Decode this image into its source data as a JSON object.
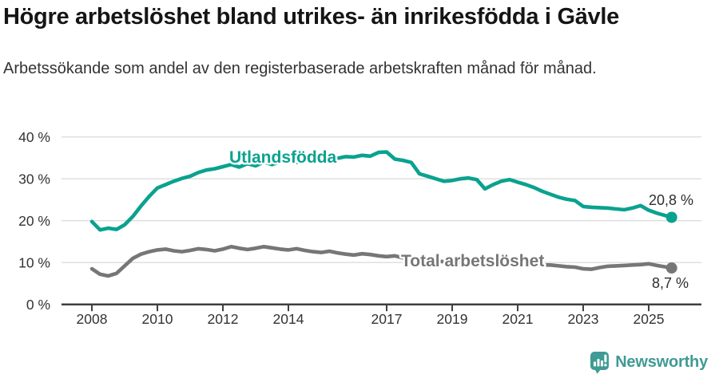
{
  "header": {
    "title": "Högre arbetslöshet bland utrikes- än inrikesfödda i Gävle",
    "subtitle": "Arbetssökande som andel av den registerbaserade arbetskraften månad för månad."
  },
  "colors": {
    "foreign_born_line": "#0aa28f",
    "total_line": "#767676",
    "grid": "#dcdcdc",
    "axis": "#3f3f3f",
    "tick_text": "#333333",
    "value_label_text": "#2e2e2e",
    "brand_teal": "#3f9b94",
    "title_text": "#151515"
  },
  "chart_data": {
    "type": "line",
    "title": "Högre arbetslöshet bland utrikes- än inrikesfödda i Gävle",
    "subtitle": "Arbetssökande som andel av den registerbaserade arbetskraften månad för månad.",
    "unit": "%",
    "grid": "horizontal",
    "xlim": [
      2007.05,
      2026.6
    ],
    "ylim": [
      0,
      42
    ],
    "x": [
      2008,
      2008.25,
      2008.5,
      2008.75,
      2009,
      2009.25,
      2009.5,
      2009.75,
      2010,
      2010.25,
      2010.5,
      2010.75,
      2011,
      2011.25,
      2011.5,
      2011.75,
      2012,
      2012.25,
      2012.5,
      2012.75,
      2013,
      2013.25,
      2013.5,
      2013.75,
      2014,
      2014.25,
      2014.5,
      2014.75,
      2015,
      2015.25,
      2015.5,
      2015.75,
      2016,
      2016.25,
      2016.5,
      2016.75,
      2017,
      2017.25,
      2017.5,
      2017.75,
      2018,
      2018.25,
      2018.5,
      2018.75,
      2019,
      2019.25,
      2019.5,
      2019.75,
      2020,
      2020.25,
      2020.5,
      2020.75,
      2021,
      2021.25,
      2021.5,
      2021.75,
      2022,
      2022.25,
      2022.5,
      2022.75,
      2023,
      2023.25,
      2023.5,
      2023.75,
      2024,
      2024.25,
      2024.5,
      2024.75,
      2025,
      2025.25,
      2025.7
    ],
    "series": [
      {
        "name": "Utlandsfödda",
        "color": "#0aa28f",
        "end_value": 20.8,
        "end_label": "20,8 %",
        "values": [
          19.8,
          17.8,
          18.2,
          17.9,
          19.0,
          21.0,
          23.5,
          25.8,
          27.8,
          28.6,
          29.4,
          30.1,
          30.6,
          31.5,
          32.1,
          32.4,
          32.9,
          33.4,
          32.8,
          33.6,
          33.1,
          34.0,
          33.4,
          34.1,
          34.3,
          33.9,
          34.4,
          34.1,
          34.6,
          35.1,
          34.9,
          35.3,
          35.2,
          35.6,
          35.4,
          36.3,
          36.4,
          34.7,
          34.4,
          33.9,
          31.2,
          30.6,
          30.0,
          29.4,
          29.6,
          30.0,
          30.2,
          29.8,
          27.6,
          28.6,
          29.4,
          29.8,
          29.2,
          28.6,
          27.9,
          27.0,
          26.3,
          25.6,
          25.1,
          24.8,
          23.4,
          23.2,
          23.1,
          23.0,
          22.8,
          22.6,
          23.0,
          23.6,
          22.5,
          21.8,
          20.8
        ]
      },
      {
        "name": "Total arbetslöshet",
        "color": "#767676",
        "end_value": 8.7,
        "end_label": "8,7 %",
        "values": [
          8.5,
          7.2,
          6.8,
          7.4,
          9.2,
          11.0,
          12.0,
          12.6,
          13.0,
          13.2,
          12.8,
          12.6,
          12.9,
          13.3,
          13.1,
          12.8,
          13.2,
          13.8,
          13.4,
          13.1,
          13.4,
          13.8,
          13.5,
          13.2,
          13.0,
          13.3,
          12.9,
          12.6,
          12.4,
          12.7,
          12.3,
          12.0,
          11.8,
          12.1,
          11.9,
          11.6,
          11.4,
          11.6,
          11.1,
          10.9,
          10.7,
          10.5,
          10.3,
          10.2,
          10.0,
          10.1,
          9.9,
          9.8,
          10.2,
          10.9,
          10.7,
          10.3,
          9.9,
          9.7,
          9.5,
          9.4,
          9.4,
          9.2,
          9.0,
          8.9,
          8.5,
          8.4,
          8.8,
          9.1,
          9.2,
          9.3,
          9.4,
          9.5,
          9.7,
          9.3,
          8.7
        ]
      }
    ],
    "y_ticks": [
      {
        "value": 0,
        "label": "0 %"
      },
      {
        "value": 10,
        "label": "10 %"
      },
      {
        "value": 20,
        "label": "20 %"
      },
      {
        "value": 30,
        "label": "30 %"
      },
      {
        "value": 40,
        "label": "40 %"
      }
    ],
    "x_ticks": [
      {
        "value": 2008,
        "label": "2008"
      },
      {
        "value": 2010,
        "label": "2010"
      },
      {
        "value": 2012,
        "label": "2012"
      },
      {
        "value": 2014,
        "label": "2014"
      },
      {
        "value": 2017,
        "label": "2017"
      },
      {
        "value": 2019,
        "label": "2019"
      },
      {
        "value": 2021,
        "label": "2021"
      },
      {
        "value": 2023,
        "label": "2023"
      },
      {
        "value": 2025,
        "label": "2025"
      }
    ],
    "legend_position": "inline-labels"
  },
  "footer": {
    "brand": "Newsworthy"
  }
}
